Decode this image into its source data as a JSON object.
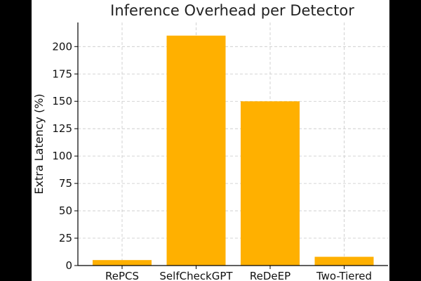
{
  "chart_data": {
    "type": "bar",
    "title": "Inference Overhead per Detector",
    "xlabel": "",
    "ylabel": "Extra Latency (%)",
    "categories": [
      "RePCS",
      "SelfCheckGPT",
      "ReDeEP",
      "Two-Tiered"
    ],
    "values": [
      5,
      210,
      150,
      8
    ],
    "ylim": [
      0,
      222
    ],
    "yticks": [
      0,
      25,
      50,
      75,
      100,
      125,
      150,
      175,
      200
    ],
    "grid": true,
    "bar_color": "#FFB000",
    "background": "#000000"
  }
}
